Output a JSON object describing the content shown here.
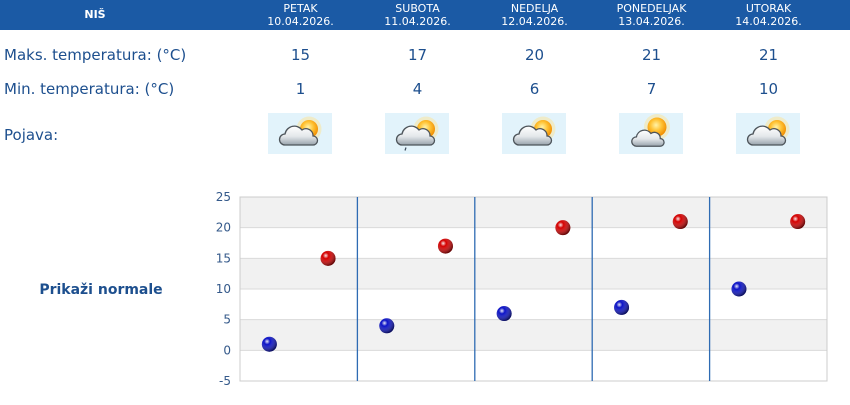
{
  "header": {
    "location": "NIŠ"
  },
  "days": [
    {
      "name": "PETAK",
      "date": "10.04.2026.",
      "max": "15",
      "min": "1",
      "icon": "partly-cloudy"
    },
    {
      "name": "SUBOTA",
      "date": "11.04.2026.",
      "max": "17",
      "min": "4",
      "icon": "partly-cloudy-rain"
    },
    {
      "name": "NEDELJA",
      "date": "12.04.2026.",
      "max": "20",
      "min": "6",
      "icon": "partly-cloudy"
    },
    {
      "name": "PONEDELJAK",
      "date": "13.04.2026.",
      "max": "21",
      "min": "7",
      "icon": "sun-behind-cloud"
    },
    {
      "name": "UTORAK",
      "date": "14.04.2026.",
      "max": "21",
      "min": "10",
      "icon": "partly-cloudy"
    }
  ],
  "rows": {
    "max_label": "Maks. temperatura: (°C)",
    "min_label": "Min. temperatura: (°C)",
    "phenomenon_label": "Pojava:"
  },
  "normals_link": "Prikaži normale",
  "colors": {
    "header_bg": "#1b5aa5",
    "text": "#1d4f8e",
    "divider": "#2e6bb3",
    "icon_bg": "#e2f3fb"
  },
  "chart_data": {
    "type": "scatter",
    "x": [
      1,
      2,
      3,
      4,
      5
    ],
    "series": [
      {
        "values": [
          15,
          17,
          20,
          21,
          21
        ],
        "color": "#d40000"
      },
      {
        "values": [
          1,
          4,
          6,
          7,
          10
        ],
        "color": "#0b12c6"
      }
    ],
    "yticks": [
      25,
      20,
      15,
      10,
      5,
      0,
      -5
    ],
    "ylim": [
      -5,
      25
    ],
    "grid": true
  }
}
